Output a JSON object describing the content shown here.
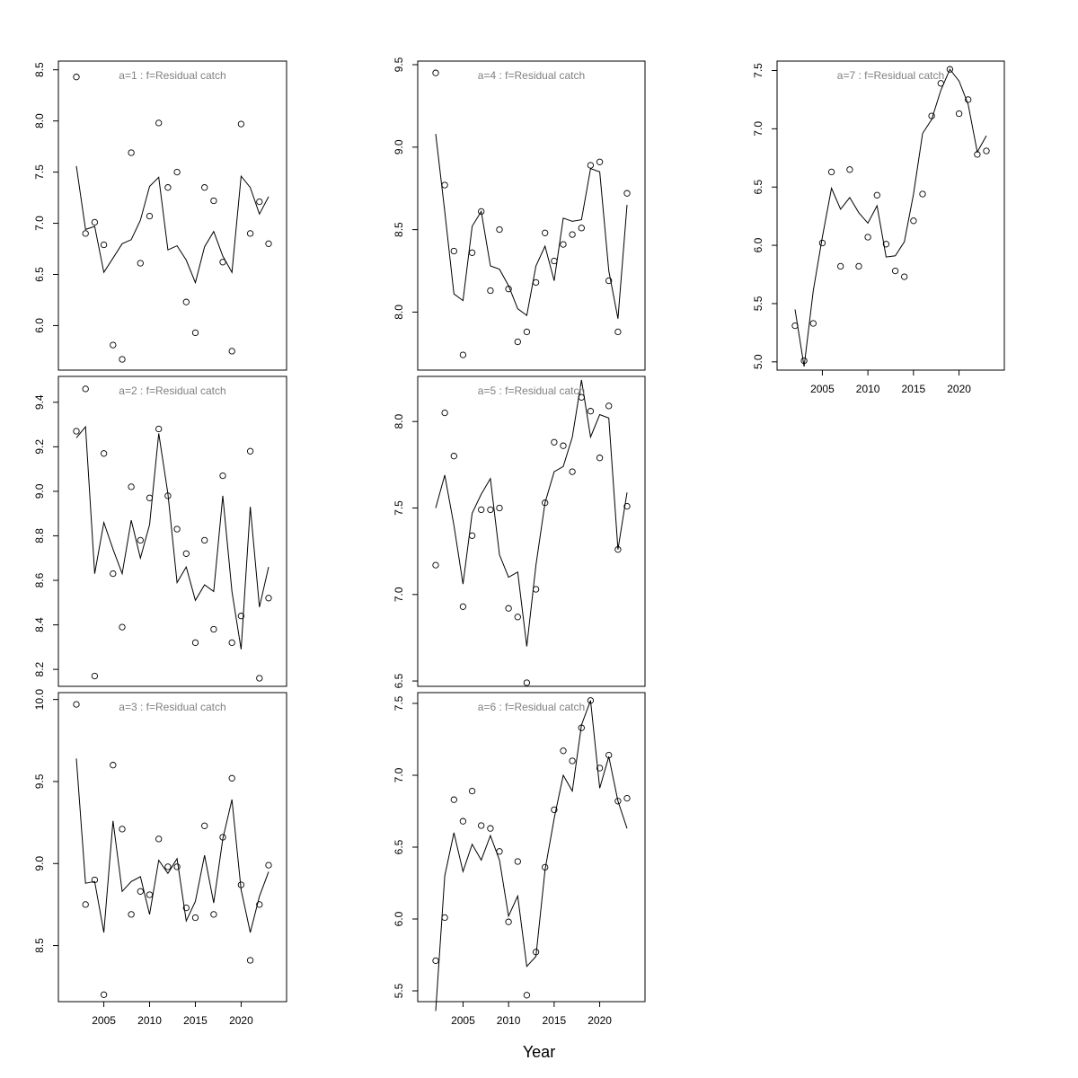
{
  "figure": {
    "xlabel": "Year"
  },
  "chart_data": [
    {
      "type": "line",
      "title": "a=1  :  f=Residual catch",
      "xlabel": "",
      "ylabel": "",
      "xlim": [
        2002,
        2023
      ],
      "ylim": [
        5.6,
        8.55
      ],
      "x_ticks": [
        2005,
        2010,
        2015,
        2020
      ],
      "y_ticks": [
        6.0,
        6.5,
        7.0,
        7.5,
        8.0,
        8.5
      ],
      "y_tick_labels": [
        "6.0",
        "6.5",
        "7.0",
        "7.5",
        "8.0",
        "8.5"
      ],
      "x": [
        2002,
        2003,
        2004,
        2005,
        2006,
        2007,
        2008,
        2009,
        2010,
        2011,
        2012,
        2013,
        2014,
        2015,
        2016,
        2017,
        2018,
        2019,
        2020,
        2021,
        2022,
        2023
      ],
      "series": [
        {
          "name": "",
          "style": "line",
          "values": [
            7.56,
            6.94,
            6.97,
            6.52,
            6.66,
            6.8,
            6.84,
            7.03,
            7.36,
            7.45,
            6.74,
            6.78,
            6.64,
            6.42,
            6.77,
            6.92,
            6.68,
            6.52,
            7.46,
            7.35,
            7.09,
            7.26
          ]
        },
        {
          "name": "",
          "style": "points",
          "values": [
            8.43,
            6.9,
            7.01,
            6.79,
            5.81,
            5.67,
            7.69,
            6.61,
            7.07,
            7.98,
            7.35,
            7.5,
            6.23,
            5.93,
            7.35,
            7.22,
            6.62,
            5.75,
            7.97,
            6.9,
            7.21,
            6.8
          ]
        }
      ],
      "grid": false
    },
    {
      "type": "line",
      "title": "a=2  :  f=Residual catch",
      "xlabel": "",
      "ylabel": "",
      "xlim": [
        2002,
        2023
      ],
      "ylim": [
        8.14,
        9.5
      ],
      "x_ticks": [
        2005,
        2010,
        2015,
        2020
      ],
      "y_ticks": [
        8.2,
        8.4,
        8.6,
        8.8,
        9.0,
        9.2,
        9.4
      ],
      "y_tick_labels": [
        "8.2",
        "8.4",
        "8.6",
        "8.8",
        "9.0",
        "9.2",
        "9.4"
      ],
      "x": [
        2002,
        2003,
        2004,
        2005,
        2006,
        2007,
        2008,
        2009,
        2010,
        2011,
        2012,
        2013,
        2014,
        2015,
        2016,
        2017,
        2018,
        2019,
        2020,
        2021,
        2022,
        2023
      ],
      "series": [
        {
          "name": "",
          "style": "line",
          "values": [
            9.24,
            9.29,
            8.63,
            8.86,
            8.74,
            8.63,
            8.87,
            8.7,
            8.85,
            9.26,
            8.99,
            8.59,
            8.66,
            8.51,
            8.58,
            8.55,
            8.98,
            8.55,
            8.29,
            8.93,
            8.48,
            8.66
          ]
        },
        {
          "name": "",
          "style": "points",
          "values": [
            9.27,
            9.46,
            8.17,
            9.17,
            8.63,
            8.39,
            9.02,
            8.78,
            8.97,
            9.28,
            8.98,
            8.83,
            8.72,
            8.32,
            8.78,
            8.38,
            9.07,
            8.32,
            8.44,
            9.18,
            8.16,
            8.52
          ]
        }
      ],
      "grid": false
    },
    {
      "type": "line",
      "title": "a=3  :  f=Residual catch",
      "xlabel": "",
      "ylabel": "",
      "xlim": [
        2002,
        2023
      ],
      "ylim": [
        8.18,
        10.02
      ],
      "x_ticks": [
        2005,
        2010,
        2015,
        2020
      ],
      "x_tick_labels": [
        "2005",
        "2010",
        "2015",
        "2020"
      ],
      "y_ticks": [
        8.5,
        9.0,
        9.5,
        10.0
      ],
      "y_tick_labels": [
        "8.5",
        "9.0",
        "9.5",
        "10.0"
      ],
      "x": [
        2002,
        2003,
        2004,
        2005,
        2006,
        2007,
        2008,
        2009,
        2010,
        2011,
        2012,
        2013,
        2014,
        2015,
        2016,
        2017,
        2018,
        2019,
        2020,
        2021,
        2022,
        2023
      ],
      "series": [
        {
          "name": "",
          "style": "line",
          "values": [
            9.64,
            8.88,
            8.89,
            8.58,
            9.26,
            8.83,
            8.89,
            8.92,
            8.69,
            9.02,
            8.94,
            9.03,
            8.65,
            8.77,
            9.05,
            8.76,
            9.15,
            9.39,
            8.84,
            8.58,
            8.8,
            8.95
          ]
        },
        {
          "name": "",
          "style": "points",
          "values": [
            9.97,
            8.75,
            8.9,
            8.2,
            9.6,
            9.21,
            8.69,
            8.83,
            8.81,
            9.15,
            8.98,
            8.98,
            8.73,
            8.67,
            9.23,
            8.69,
            9.16,
            9.52,
            8.87,
            8.41,
            8.75,
            8.99
          ]
        }
      ],
      "grid": false
    },
    {
      "type": "line",
      "title": "a=4  :  f=Residual catch",
      "xlabel": "",
      "ylabel": "",
      "xlim": [
        2002,
        2023
      ],
      "ylim": [
        7.67,
        9.5
      ],
      "x_ticks": [
        2005,
        2010,
        2015,
        2020
      ],
      "y_ticks": [
        8.0,
        8.5,
        9.0,
        9.5
      ],
      "y_tick_labels": [
        "8.0",
        "8.5",
        "9.0",
        "9.5"
      ],
      "x": [
        2002,
        2003,
        2004,
        2005,
        2006,
        2007,
        2008,
        2009,
        2010,
        2011,
        2012,
        2013,
        2014,
        2015,
        2016,
        2017,
        2018,
        2019,
        2020,
        2021,
        2022,
        2023
      ],
      "series": [
        {
          "name": "",
          "style": "line",
          "values": [
            9.08,
            8.61,
            8.11,
            8.07,
            8.52,
            8.61,
            8.28,
            8.26,
            8.16,
            8.02,
            7.98,
            8.28,
            8.4,
            8.19,
            8.57,
            8.55,
            8.56,
            8.87,
            8.85,
            8.25,
            7.96,
            8.65
          ]
        },
        {
          "name": "",
          "style": "points",
          "values": [
            9.45,
            8.77,
            8.37,
            7.74,
            8.36,
            8.61,
            8.13,
            8.5,
            8.14,
            7.82,
            7.88,
            8.18,
            8.48,
            8.31,
            8.41,
            8.47,
            8.51,
            8.89,
            8.91,
            8.19,
            7.88,
            8.72
          ]
        }
      ],
      "grid": false
    },
    {
      "type": "line",
      "title": "a=5  :  f=Residual catch",
      "xlabel": "",
      "ylabel": "",
      "xlim": [
        2002,
        2023
      ],
      "ylim": [
        6.49,
        8.24
      ],
      "x_ticks": [
        2005,
        2010,
        2015,
        2020
      ],
      "y_ticks": [
        6.5,
        7.0,
        7.5,
        8.0
      ],
      "y_tick_labels": [
        "6.5",
        "7.0",
        "7.5",
        "8.0"
      ],
      "x": [
        2002,
        2003,
        2004,
        2005,
        2006,
        2007,
        2008,
        2009,
        2010,
        2011,
        2012,
        2013,
        2014,
        2015,
        2016,
        2017,
        2018,
        2019,
        2020,
        2021,
        2022,
        2023
      ],
      "series": [
        {
          "name": "",
          "style": "line",
          "values": [
            7.5,
            7.69,
            7.4,
            7.06,
            7.47,
            7.58,
            7.67,
            7.23,
            7.1,
            7.13,
            6.7,
            7.17,
            7.53,
            7.71,
            7.74,
            7.91,
            8.24,
            7.91,
            8.04,
            8.02,
            7.26,
            7.59
          ]
        },
        {
          "name": "",
          "style": "points",
          "values": [
            7.17,
            8.05,
            7.8,
            6.93,
            7.34,
            7.49,
            7.49,
            7.5,
            6.92,
            6.87,
            6.49,
            7.03,
            7.53,
            7.88,
            7.86,
            7.71,
            8.14,
            8.06,
            7.79,
            8.09,
            7.26,
            7.51
          ]
        }
      ],
      "grid": false
    },
    {
      "type": "line",
      "title": "a=6  :  f=Residual catch",
      "xlabel": "",
      "ylabel": "",
      "xlim": [
        2002,
        2023
      ],
      "ylim": [
        5.45,
        7.55
      ],
      "x_ticks": [
        2005,
        2010,
        2015,
        2020
      ],
      "x_tick_labels": [
        "2005",
        "2010",
        "2015",
        "2020"
      ],
      "y_ticks": [
        5.5,
        6.0,
        6.5,
        7.0,
        7.5
      ],
      "y_tick_labels": [
        "5.5",
        "6.0",
        "6.5",
        "7.0",
        "7.5"
      ],
      "x": [
        2002,
        2003,
        2004,
        2005,
        2006,
        2007,
        2008,
        2009,
        2010,
        2011,
        2012,
        2013,
        2014,
        2015,
        2016,
        2017,
        2018,
        2019,
        2020,
        2021,
        2022,
        2023
      ],
      "series": [
        {
          "name": "",
          "style": "line",
          "values": [
            5.36,
            6.3,
            6.6,
            6.33,
            6.52,
            6.41,
            6.58,
            6.41,
            6.02,
            6.16,
            5.67,
            5.74,
            6.34,
            6.7,
            7.0,
            6.89,
            7.35,
            7.52,
            6.91,
            7.13,
            6.82,
            6.63
          ]
        },
        {
          "name": "",
          "style": "points",
          "values": [
            5.71,
            6.01,
            6.83,
            6.68,
            6.89,
            6.65,
            6.63,
            6.47,
            5.98,
            6.4,
            5.47,
            5.77,
            6.36,
            6.76,
            7.17,
            7.1,
            7.33,
            7.52,
            7.05,
            7.14,
            6.82,
            6.84
          ]
        }
      ],
      "grid": false
    },
    {
      "type": "line",
      "title": "a=7  :  f=Residual catch",
      "xlabel": "",
      "ylabel": "",
      "xlim": [
        2002,
        2023
      ],
      "ylim": [
        4.96,
        7.55
      ],
      "x_ticks": [
        2005,
        2010,
        2015,
        2020
      ],
      "x_tick_labels": [
        "2005",
        "2010",
        "2015",
        "2020"
      ],
      "y_ticks": [
        5.0,
        5.5,
        6.0,
        6.5,
        7.0,
        7.5
      ],
      "y_tick_labels": [
        "5.0",
        "5.5",
        "6.0",
        "6.5",
        "7.0",
        "7.5"
      ],
      "x": [
        2002,
        2003,
        2004,
        2005,
        2006,
        2007,
        2008,
        2009,
        2010,
        2011,
        2012,
        2013,
        2014,
        2015,
        2016,
        2017,
        2018,
        2019,
        2020,
        2021,
        2022,
        2023
      ],
      "series": [
        {
          "name": "",
          "style": "line",
          "values": [
            5.45,
            4.96,
            5.61,
            6.07,
            6.49,
            6.31,
            6.41,
            6.28,
            6.19,
            6.34,
            5.9,
            5.91,
            6.03,
            6.44,
            6.96,
            7.08,
            7.33,
            7.51,
            7.41,
            7.21,
            6.8,
            6.94
          ]
        },
        {
          "name": "",
          "style": "points",
          "values": [
            5.31,
            5.01,
            5.33,
            6.02,
            6.63,
            5.82,
            6.65,
            5.82,
            6.07,
            6.43,
            6.01,
            5.78,
            5.73,
            6.21,
            6.44,
            7.11,
            7.39,
            7.51,
            7.13,
            7.25,
            6.78,
            6.81
          ]
        }
      ],
      "grid": false
    }
  ]
}
